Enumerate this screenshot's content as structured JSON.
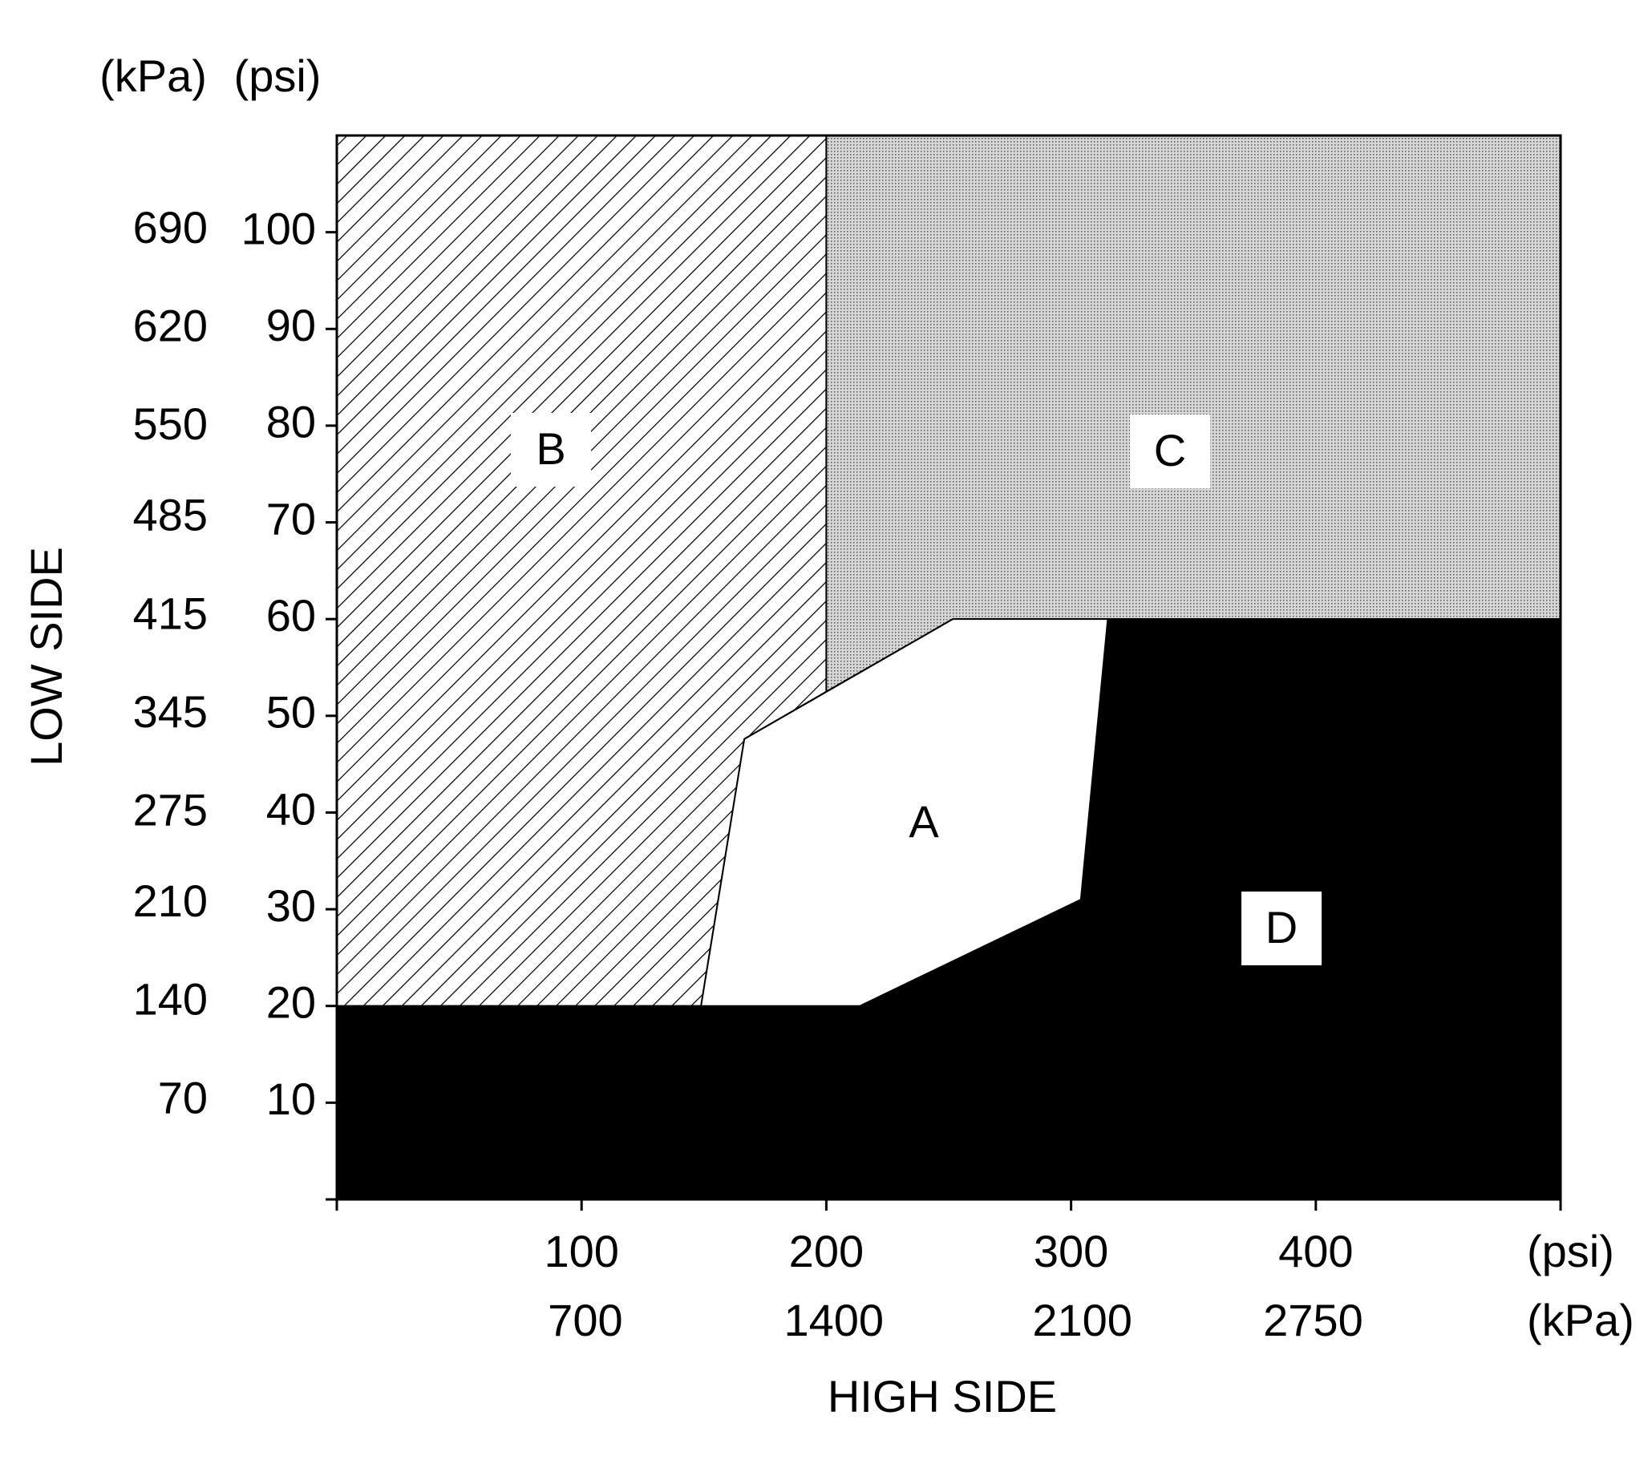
{
  "chart_data": {
    "type": "region",
    "xlabel": "HIGH SIDE",
    "ylabel": "LOW SIDE",
    "x_units": "(psi)",
    "x2_units": "(kPa)",
    "y_units": "(psi)",
    "y2_units": "(kPa)",
    "xlim": [
      0,
      500
    ],
    "xticks": [
      100,
      200,
      300,
      400
    ],
    "x2lim": [
      0,
      3447
    ],
    "x2ticks": [
      700,
      1400,
      2100,
      2750
    ],
    "ylim": [
      0,
      110
    ],
    "yticks": [
      10,
      20,
      30,
      40,
      50,
      60,
      70,
      80,
      90,
      100
    ],
    "y2lim": [
      0,
      758
    ],
    "y2ticks": [
      70,
      140,
      210,
      275,
      345,
      415,
      485,
      550,
      620,
      690
    ],
    "regions": [
      {
        "name": "B",
        "fill": "hatch",
        "x": [
          0,
          0,
          200,
          200,
          166.5,
          148.8
        ],
        "y": [
          20,
          110,
          110,
          52.5,
          47.6,
          20
        ]
      },
      {
        "name": "C",
        "fill": "stipple",
        "x": [
          200,
          500,
          500,
          251.7,
          200
        ],
        "y": [
          110,
          110,
          60,
          60,
          52.5
        ]
      },
      {
        "name": "D",
        "fill": "black",
        "x": [
          0,
          500,
          500,
          315,
          304,
          213.7,
          0
        ],
        "y": [
          0,
          0,
          60,
          60,
          31,
          20,
          20
        ]
      },
      {
        "name": "A",
        "fill": "white",
        "x": [
          148.8,
          166.5,
          251.7,
          315,
          304,
          213.7
        ],
        "y": [
          20,
          47.6,
          60,
          60,
          31,
          20
        ]
      }
    ]
  }
}
